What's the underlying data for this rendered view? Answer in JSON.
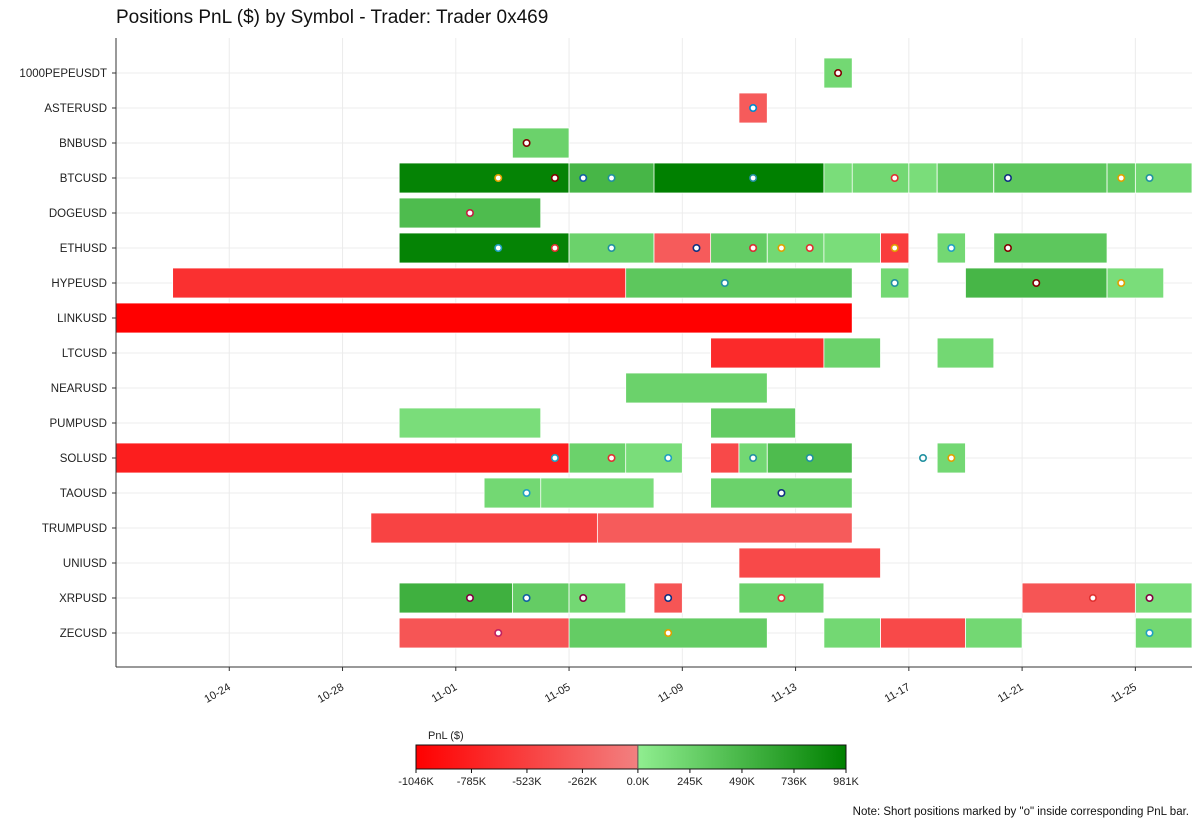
{
  "chart_data": {
    "type": "timeline",
    "title": "Positions PnL ($) by Symbol - Trader: Trader 0x469",
    "xlabel": "",
    "ylabel": "",
    "x_range": [
      "10-20",
      "11-27"
    ],
    "x_ticks": [
      "10-24",
      "10-28",
      "11-01",
      "11-05",
      "11-09",
      "11-13",
      "11-17",
      "11-21",
      "11-25"
    ],
    "grid": true,
    "symbols": [
      "1000PEPEUSDT",
      "ASTERUSD",
      "BNBUSD",
      "BTCUSD",
      "DOGEUSD",
      "ETHUSD",
      "HYPEUSD",
      "LINKUSD",
      "LTCUSD",
      "NEARUSD",
      "PUMPUSD",
      "SOLUSD",
      "TAOUSD",
      "TRUMPUSD",
      "UNIUSD",
      "XRPUSD",
      "ZECUSD"
    ],
    "colorbar": {
      "label": "PnL ($)",
      "min": -1046000,
      "max": 981000,
      "ticks": [
        "-1046K",
        "-785K",
        "-523K",
        "-262K",
        "0.0K",
        "245K",
        "490K",
        "736K",
        "981K"
      ]
    },
    "positions": [
      {
        "symbol": "1000PEPEUSDT",
        "start": "11-14",
        "end": "11-14",
        "pnl": 200000
      },
      {
        "symbol": "ASTERUSD",
        "start": "11-11",
        "end": "11-11",
        "pnl": -300000
      },
      {
        "symbol": "BNBUSD",
        "start": "11-03",
        "end": "11-04",
        "pnl": 250000
      },
      {
        "symbol": "BTCUSD",
        "start": "10-30",
        "end": "11-04",
        "pnl": 950000
      },
      {
        "symbol": "BTCUSD",
        "start": "11-05",
        "end": "11-08",
        "pnl": 500000
      },
      {
        "symbol": "BTCUSD",
        "start": "11-08",
        "end": "11-13",
        "pnl": 981000
      },
      {
        "symbol": "BTCUSD",
        "start": "11-14",
        "end": "11-15",
        "pnl": 150000
      },
      {
        "symbol": "BTCUSD",
        "start": "11-15",
        "end": "11-16",
        "pnl": 200000
      },
      {
        "symbol": "BTCUSD",
        "start": "11-17",
        "end": "11-17",
        "pnl": 150000
      },
      {
        "symbol": "BTCUSD",
        "start": "11-18",
        "end": "11-19",
        "pnl": 300000
      },
      {
        "symbol": "BTCUSD",
        "start": "11-20",
        "end": "11-20",
        "pnl": 200000
      },
      {
        "symbol": "BTCUSD",
        "start": "11-20",
        "end": "11-23",
        "pnl": 350000
      },
      {
        "symbol": "BTCUSD",
        "start": "11-24",
        "end": "11-24",
        "pnl": 300000
      },
      {
        "symbol": "BTCUSD",
        "start": "11-25",
        "end": "11-26",
        "pnl": 200000
      },
      {
        "symbol": "DOGEUSD",
        "start": "10-30",
        "end": "11-03",
        "pnl": 450000
      },
      {
        "symbol": "ETHUSD",
        "start": "10-30",
        "end": "11-04",
        "pnl": 950000
      },
      {
        "symbol": "ETHUSD",
        "start": "11-05",
        "end": "11-07",
        "pnl": 250000
      },
      {
        "symbol": "ETHUSD",
        "start": "11-08",
        "end": "11-10",
        "pnl": -300000
      },
      {
        "symbol": "ETHUSD",
        "start": "11-10",
        "end": "11-11",
        "pnl": 300000
      },
      {
        "symbol": "ETHUSD",
        "start": "11-12",
        "end": "11-13",
        "pnl": 200000
      },
      {
        "symbol": "ETHUSD",
        "start": "11-14",
        "end": "11-15",
        "pnl": 150000
      },
      {
        "symbol": "ETHUSD",
        "start": "11-16",
        "end": "11-16",
        "pnl": -550000
      },
      {
        "symbol": "ETHUSD",
        "start": "11-18",
        "end": "11-18",
        "pnl": 200000
      },
      {
        "symbol": "ETHUSD",
        "start": "11-20",
        "end": "11-23",
        "pnl": 350000
      },
      {
        "symbol": "HYPEUSD",
        "start": "10-22",
        "end": "11-07",
        "pnl": -650000
      },
      {
        "symbol": "HYPEUSD",
        "start": "11-07",
        "end": "11-14",
        "pnl": 350000
      },
      {
        "symbol": "HYPEUSD",
        "start": "11-16",
        "end": "11-16",
        "pnl": 200000
      },
      {
        "symbol": "HYPEUSD",
        "start": "11-19",
        "end": "11-23",
        "pnl": 500000
      },
      {
        "symbol": "HYPEUSD",
        "start": "11-24",
        "end": "11-25",
        "pnl": 150000
      },
      {
        "symbol": "LINKUSD",
        "start": "10-20",
        "end": "11-14",
        "pnl": -1046000
      },
      {
        "symbol": "LTCUSD",
        "start": "11-10",
        "end": "11-14",
        "pnl": -700000
      },
      {
        "symbol": "LTCUSD",
        "start": "11-14",
        "end": "11-15",
        "pnl": 250000
      },
      {
        "symbol": "LTCUSD",
        "start": "11-18",
        "end": "11-19",
        "pnl": 200000
      },
      {
        "symbol": "NEARUSD",
        "start": "11-07",
        "end": "11-11",
        "pnl": 250000
      },
      {
        "symbol": "PUMPUSD",
        "start": "10-30",
        "end": "11-03",
        "pnl": 150000
      },
      {
        "symbol": "PUMPUSD",
        "start": "11-10",
        "end": "11-12",
        "pnl": 300000
      },
      {
        "symbol": "SOLUSD",
        "start": "10-20",
        "end": "11-04",
        "pnl": -800000
      },
      {
        "symbol": "SOLUSD",
        "start": "11-05",
        "end": "11-07",
        "pnl": 250000
      },
      {
        "symbol": "SOLUSD",
        "start": "11-07",
        "end": "11-08",
        "pnl": 150000
      },
      {
        "symbol": "SOLUSD",
        "start": "11-10",
        "end": "11-10",
        "pnl": -450000
      },
      {
        "symbol": "SOLUSD",
        "start": "11-11",
        "end": "11-11",
        "pnl": 200000
      },
      {
        "symbol": "SOLUSD",
        "start": "11-12",
        "end": "11-14",
        "pnl": 450000
      },
      {
        "symbol": "SOLUSD",
        "start": "11-18",
        "end": "11-18",
        "pnl": 200000
      },
      {
        "symbol": "TAOUSD",
        "start": "11-02",
        "end": "11-04",
        "pnl": 200000
      },
      {
        "symbol": "TAOUSD",
        "start": "11-04",
        "end": "11-07",
        "pnl": 150000
      },
      {
        "symbol": "TAOUSD",
        "start": "11-10",
        "end": "11-14",
        "pnl": 250000
      },
      {
        "symbol": "TRUMPUSD",
        "start": "10-29",
        "end": "11-06",
        "pnl": -500000
      },
      {
        "symbol": "TRUMPUSD",
        "start": "11-06",
        "end": "11-14",
        "pnl": -300000
      },
      {
        "symbol": "UNIUSD",
        "start": "11-11",
        "end": "11-15",
        "pnl": -450000
      },
      {
        "symbol": "XRPUSD",
        "start": "10-30",
        "end": "11-03",
        "pnl": 550000
      },
      {
        "symbol": "XRPUSD",
        "start": "11-03",
        "end": "11-04",
        "pnl": 300000
      },
      {
        "symbol": "XRPUSD",
        "start": "11-05",
        "end": "11-06",
        "pnl": 200000
      },
      {
        "symbol": "XRPUSD",
        "start": "11-08",
        "end": "11-08",
        "pnl": -350000
      },
      {
        "symbol": "XRPUSD",
        "start": "11-11",
        "end": "11-13",
        "pnl": 250000
      },
      {
        "symbol": "XRPUSD",
        "start": "11-21",
        "end": "11-24",
        "pnl": -350000
      },
      {
        "symbol": "XRPUSD",
        "start": "11-25",
        "end": "11-26",
        "pnl": 150000
      },
      {
        "symbol": "ZECUSD",
        "start": "10-30",
        "end": "11-05",
        "pnl": -350000
      },
      {
        "symbol": "ZECUSD",
        "start": "11-05",
        "end": "11-11",
        "pnl": 300000
      },
      {
        "symbol": "ZECUSD",
        "start": "11-14",
        "end": "11-15",
        "pnl": 200000
      },
      {
        "symbol": "ZECUSD",
        "start": "11-16",
        "end": "11-16",
        "pnl": 200000
      },
      {
        "symbol": "ZECUSD",
        "start": "11-16",
        "end": "11-18",
        "pnl": -450000
      },
      {
        "symbol": "ZECUSD",
        "start": "11-19",
        "end": "11-20",
        "pnl": 200000
      },
      {
        "symbol": "ZECUSD",
        "start": "11-25",
        "end": "11-26",
        "pnl": 200000
      }
    ],
    "short_markers": [
      {
        "symbol": "1000PEPEUSDT",
        "date": "11-14",
        "color": "#800000"
      },
      {
        "symbol": "ASTERUSD",
        "date": "11-11",
        "color": "#0088cc"
      },
      {
        "symbol": "BNBUSD",
        "date": "11-03",
        "color": "#800000"
      },
      {
        "symbol": "BTCUSD",
        "date": "11-02",
        "color": "#e0a000"
      },
      {
        "symbol": "BTCUSD",
        "date": "11-04",
        "color": "#800000"
      },
      {
        "symbol": "BTCUSD",
        "date": "11-05",
        "color": "#1060a0"
      },
      {
        "symbol": "BTCUSD",
        "date": "11-06",
        "color": "#2090a0"
      },
      {
        "symbol": "BTCUSD",
        "date": "11-11",
        "color": "#2090a0"
      },
      {
        "symbol": "BTCUSD",
        "date": "11-16",
        "color": "#e03030"
      },
      {
        "symbol": "BTCUSD",
        "date": "11-20",
        "color": "#103080"
      },
      {
        "symbol": "BTCUSD",
        "date": "11-24",
        "color": "#e0a000"
      },
      {
        "symbol": "BTCUSD",
        "date": "11-25",
        "color": "#2090a0"
      },
      {
        "symbol": "DOGEUSD",
        "date": "11-01",
        "color": "#c02040"
      },
      {
        "symbol": "ETHUSD",
        "date": "11-02",
        "color": "#20a0c0"
      },
      {
        "symbol": "ETHUSD",
        "date": "11-04",
        "color": "#e03030"
      },
      {
        "symbol": "ETHUSD",
        "date": "11-06",
        "color": "#2090a0"
      },
      {
        "symbol": "ETHUSD",
        "date": "11-09",
        "color": "#103080"
      },
      {
        "symbol": "ETHUSD",
        "date": "11-11",
        "color": "#1060a0"
      },
      {
        "symbol": "ETHUSD",
        "date": "11-11",
        "color": "#e03030"
      },
      {
        "symbol": "ETHUSD",
        "date": "11-12",
        "color": "#e0a000"
      },
      {
        "symbol": "ETHUSD",
        "date": "11-13",
        "color": "#e03030"
      },
      {
        "symbol": "ETHUSD",
        "date": "11-16",
        "color": "#e0a000"
      },
      {
        "symbol": "ETHUSD",
        "date": "11-18",
        "color": "#20a0c0"
      },
      {
        "symbol": "ETHUSD",
        "date": "11-20",
        "color": "#800000"
      },
      {
        "symbol": "HYPEUSD",
        "date": "11-10",
        "color": "#2090a0"
      },
      {
        "symbol": "HYPEUSD",
        "date": "11-16",
        "color": "#2090a0"
      },
      {
        "symbol": "HYPEUSD",
        "date": "11-21",
        "color": "#800000"
      },
      {
        "symbol": "HYPEUSD",
        "date": "11-24",
        "color": "#e0a000"
      },
      {
        "symbol": "SOLUSD",
        "date": "11-04",
        "color": "#20a0c0"
      },
      {
        "symbol": "SOLUSD",
        "date": "11-06",
        "color": "#e03030"
      },
      {
        "symbol": "SOLUSD",
        "date": "11-08",
        "color": "#20a0c0"
      },
      {
        "symbol": "SOLUSD",
        "date": "11-11",
        "color": "#2090a0"
      },
      {
        "symbol": "SOLUSD",
        "date": "11-13",
        "color": "#2090a0"
      },
      {
        "symbol": "SOLUSD",
        "date": "11-17",
        "color": "#2090a0"
      },
      {
        "symbol": "SOLUSD",
        "date": "11-18",
        "color": "#e0a000"
      },
      {
        "symbol": "TAOUSD",
        "date": "11-03",
        "color": "#20a0c0"
      },
      {
        "symbol": "TAOUSD",
        "date": "11-12",
        "color": "#103080"
      },
      {
        "symbol": "XRPUSD",
        "date": "11-01",
        "color": "#800040"
      },
      {
        "symbol": "XRPUSD",
        "date": "11-03",
        "color": "#1060a0"
      },
      {
        "symbol": "XRPUSD",
        "date": "11-05",
        "color": "#800040"
      },
      {
        "symbol": "XRPUSD",
        "date": "11-08",
        "color": "#103080"
      },
      {
        "symbol": "XRPUSD",
        "date": "11-12",
        "color": "#e03030"
      },
      {
        "symbol": "XRPUSD",
        "date": "11-23",
        "color": "#e03030"
      },
      {
        "symbol": "XRPUSD",
        "date": "11-25",
        "color": "#800040"
      },
      {
        "symbol": "ZECUSD",
        "date": "11-02",
        "color": "#c02060"
      },
      {
        "symbol": "ZECUSD",
        "date": "11-08",
        "color": "#e0a000"
      },
      {
        "symbol": "ZECUSD",
        "date": "11-25",
        "color": "#20a0c0"
      }
    ]
  },
  "note": "Note: Short positions marked by \"o\" inside corresponding PnL bar."
}
